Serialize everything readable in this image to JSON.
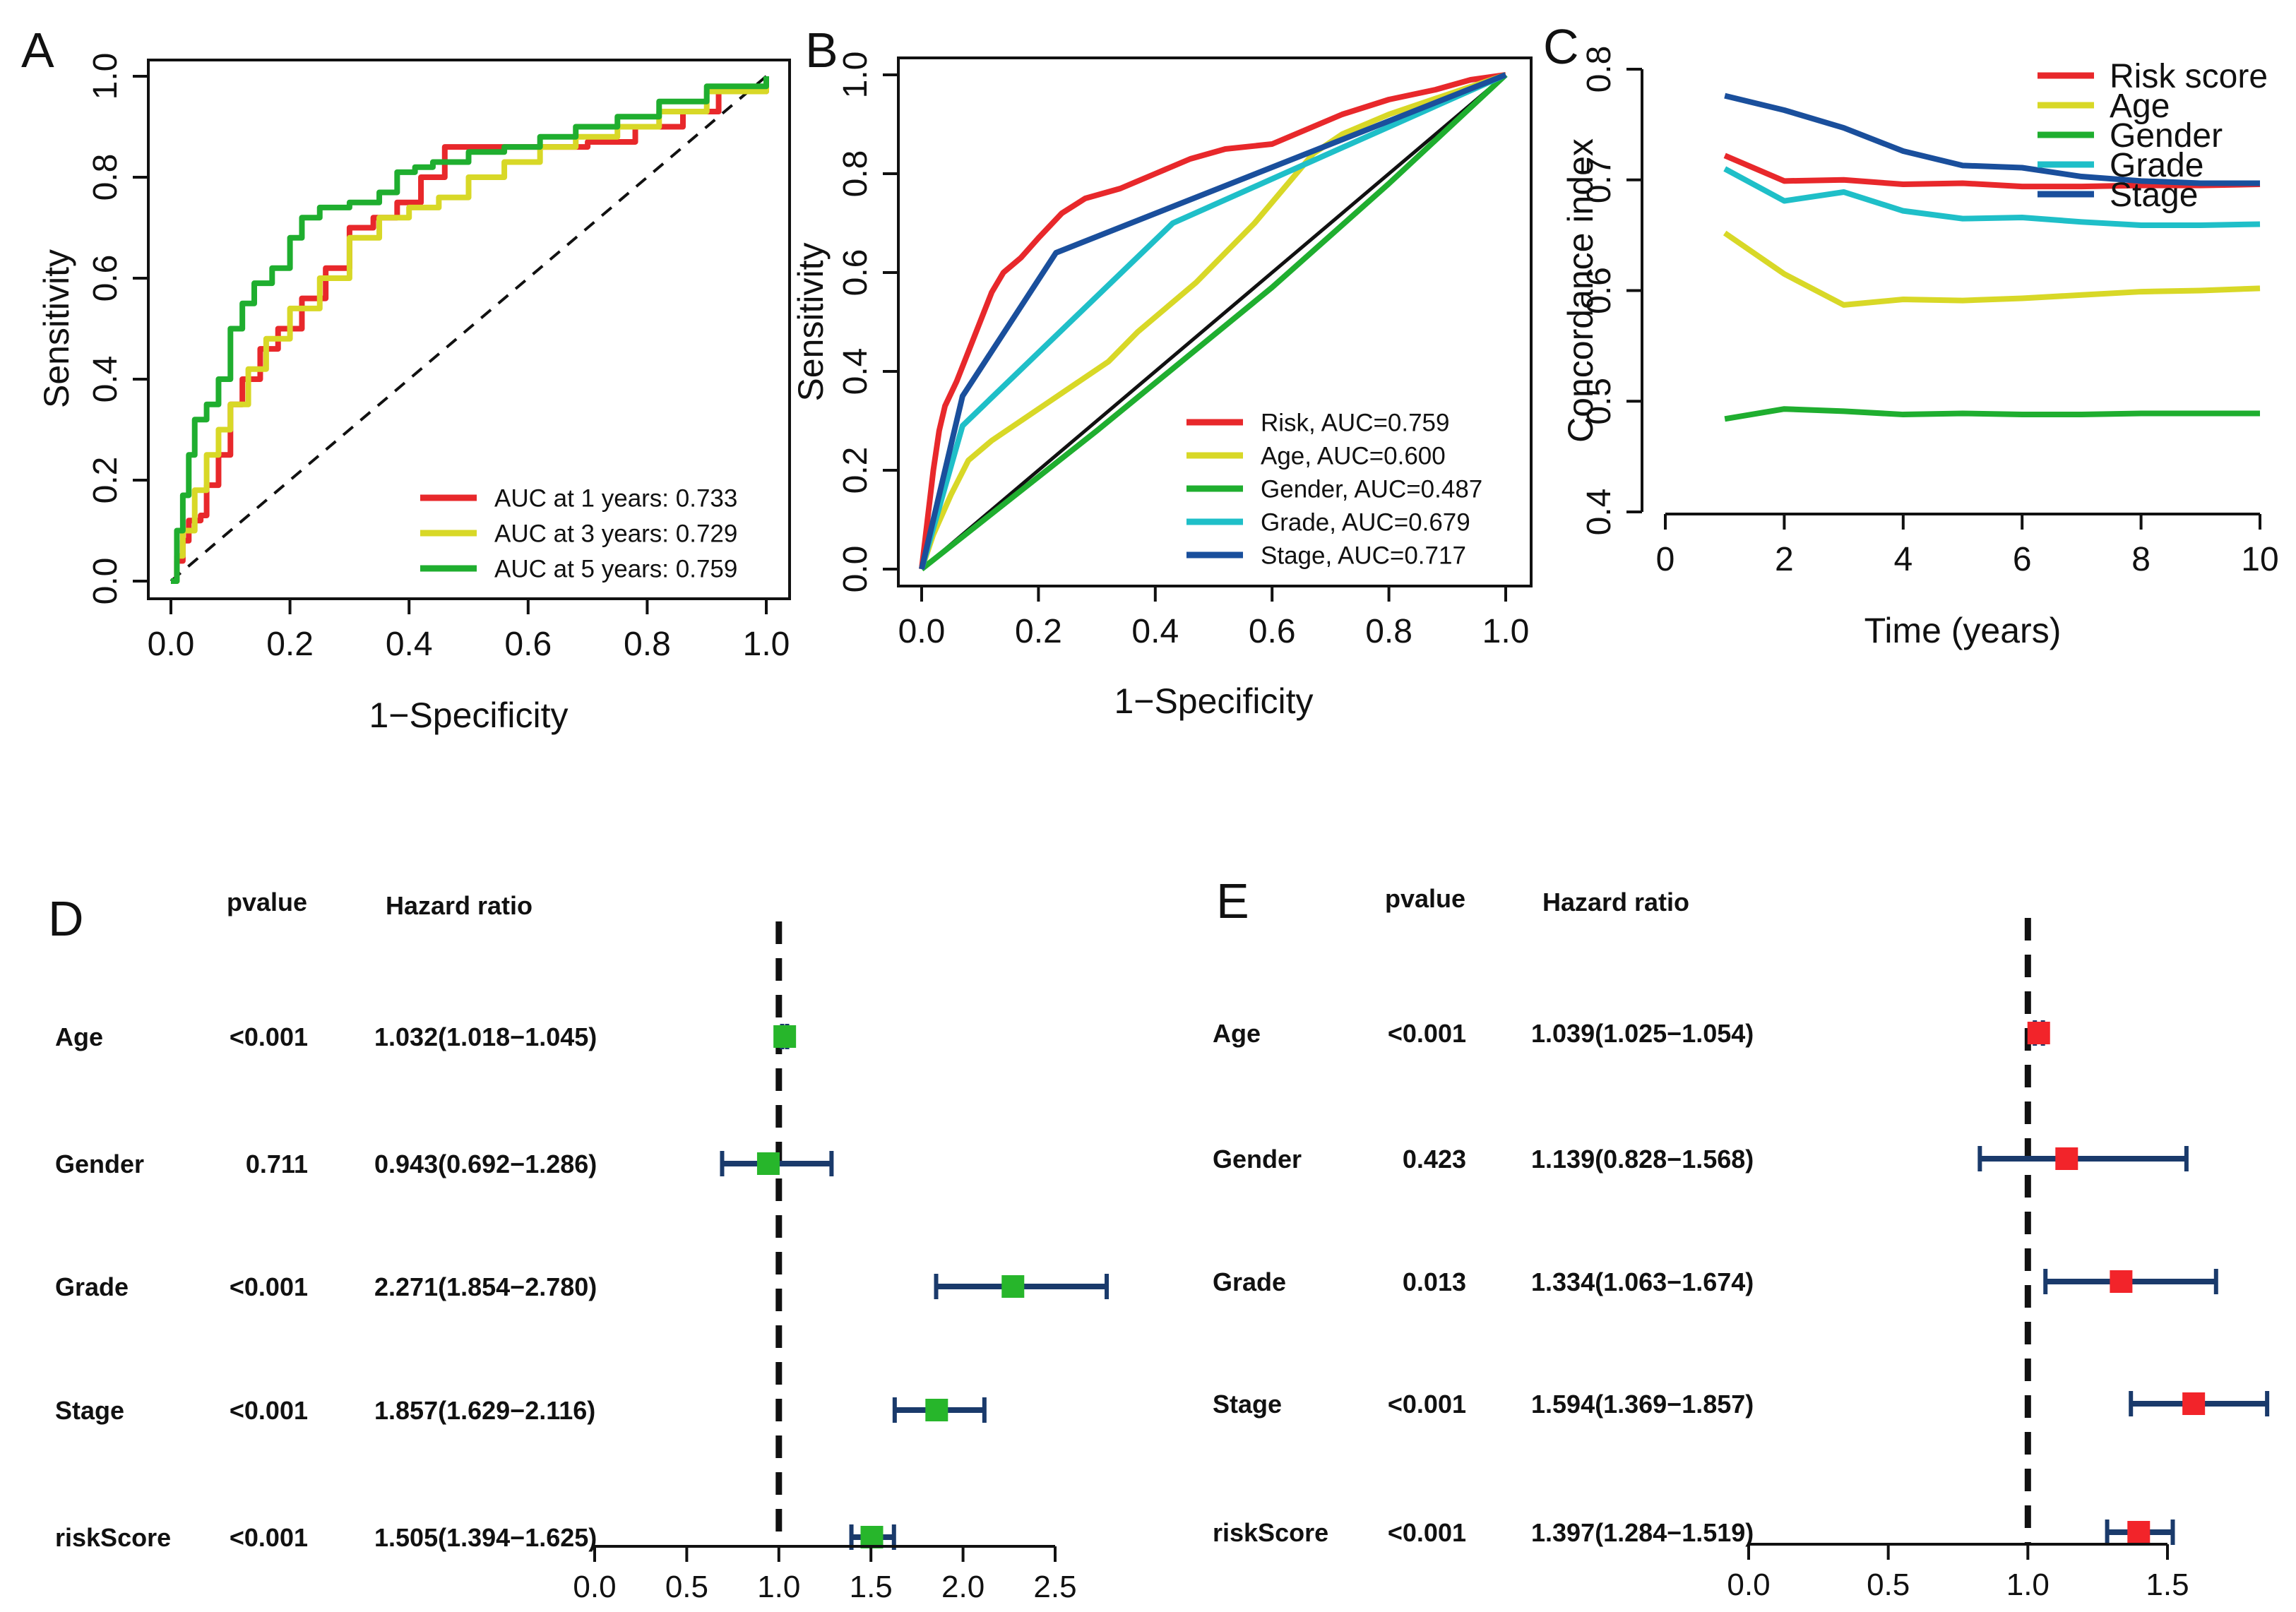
{
  "chart_data": [
    {
      "panel": "A",
      "type": "line",
      "title": "",
      "xlabel": "1−Specificity",
      "ylabel": "Sensitivity",
      "xlim": [
        0,
        1
      ],
      "ylim": [
        0,
        1
      ],
      "xticks": [
        "0.0",
        "0.2",
        "0.4",
        "0.6",
        "0.8",
        "1.0"
      ],
      "yticks": [
        "0.0",
        "0.2",
        "0.4",
        "0.6",
        "0.8",
        "1.0"
      ],
      "legend_position": "bottom-right",
      "series": [
        {
          "name": "AUC at 1 years: 0.733",
          "color": "#e8282b",
          "x": [
            0,
            0.01,
            0.02,
            0.03,
            0.05,
            0.06,
            0.08,
            0.1,
            0.12,
            0.15,
            0.18,
            0.22,
            0.26,
            0.3,
            0.34,
            0.38,
            0.42,
            0.46,
            0.5,
            0.56,
            0.62,
            0.7,
            0.78,
            0.86,
            0.92,
            1.0
          ],
          "y": [
            0,
            0.04,
            0.08,
            0.12,
            0.13,
            0.19,
            0.25,
            0.35,
            0.4,
            0.46,
            0.5,
            0.56,
            0.62,
            0.7,
            0.72,
            0.75,
            0.8,
            0.86,
            0.86,
            0.86,
            0.86,
            0.87,
            0.9,
            0.93,
            0.97,
            1.0
          ]
        },
        {
          "name": "AUC at 3 years: 0.729",
          "color": "#d8d827",
          "x": [
            0,
            0.01,
            0.02,
            0.04,
            0.06,
            0.08,
            0.1,
            0.13,
            0.16,
            0.2,
            0.25,
            0.3,
            0.35,
            0.4,
            0.45,
            0.5,
            0.56,
            0.62,
            0.68,
            0.75,
            0.82,
            0.9,
            1.0
          ],
          "y": [
            0,
            0.05,
            0.1,
            0.18,
            0.25,
            0.3,
            0.35,
            0.42,
            0.48,
            0.54,
            0.6,
            0.68,
            0.72,
            0.74,
            0.76,
            0.8,
            0.83,
            0.86,
            0.88,
            0.9,
            0.93,
            0.97,
            1.0
          ]
        },
        {
          "name": "AUC at 5 years: 0.759",
          "color": "#1fae2f",
          "x": [
            0,
            0.01,
            0.02,
            0.03,
            0.04,
            0.06,
            0.08,
            0.1,
            0.12,
            0.14,
            0.17,
            0.2,
            0.22,
            0.25,
            0.3,
            0.35,
            0.38,
            0.41,
            0.44,
            0.5,
            0.56,
            0.62,
            0.68,
            0.75,
            0.82,
            0.9,
            1.0
          ],
          "y": [
            0,
            0.1,
            0.17,
            0.25,
            0.32,
            0.35,
            0.4,
            0.5,
            0.55,
            0.59,
            0.62,
            0.68,
            0.72,
            0.74,
            0.75,
            0.77,
            0.81,
            0.82,
            0.83,
            0.85,
            0.86,
            0.88,
            0.9,
            0.92,
            0.95,
            0.98,
            1.0
          ]
        }
      ]
    },
    {
      "panel": "B",
      "type": "line",
      "title": "",
      "xlabel": "1−Specificity",
      "ylabel": "Sensitivity",
      "xlim": [
        0,
        1
      ],
      "ylim": [
        0,
        1
      ],
      "xticks": [
        "0.0",
        "0.2",
        "0.4",
        "0.6",
        "0.8",
        "1.0"
      ],
      "yticks": [
        "0.0",
        "0.2",
        "0.4",
        "0.6",
        "0.8",
        "1.0"
      ],
      "legend_position": "bottom-right",
      "series": [
        {
          "name": "Risk, AUC=0.759",
          "color": "#e8282b",
          "x": [
            0,
            0.01,
            0.02,
            0.03,
            0.04,
            0.06,
            0.08,
            0.1,
            0.12,
            0.14,
            0.17,
            0.2,
            0.24,
            0.28,
            0.34,
            0.4,
            0.46,
            0.52,
            0.6,
            0.66,
            0.72,
            0.8,
            0.88,
            0.94,
            1.0
          ],
          "y": [
            0,
            0.1,
            0.2,
            0.28,
            0.33,
            0.38,
            0.44,
            0.5,
            0.56,
            0.6,
            0.63,
            0.67,
            0.72,
            0.75,
            0.77,
            0.8,
            0.83,
            0.85,
            0.86,
            0.89,
            0.92,
            0.95,
            0.97,
            0.99,
            1.0
          ]
        },
        {
          "name": "Age, AUC=0.600",
          "color": "#d8d827",
          "x": [
            0,
            0.02,
            0.05,
            0.08,
            0.12,
            0.17,
            0.22,
            0.27,
            0.32,
            0.37,
            0.42,
            0.47,
            0.52,
            0.57,
            0.62,
            0.67,
            0.72,
            0.8,
            0.9,
            1.0
          ],
          "y": [
            0,
            0.07,
            0.15,
            0.22,
            0.26,
            0.3,
            0.34,
            0.38,
            0.42,
            0.48,
            0.53,
            0.58,
            0.64,
            0.7,
            0.77,
            0.84,
            0.88,
            0.92,
            0.96,
            1.0
          ]
        },
        {
          "name": "Gender, AUC=0.487",
          "color": "#1fae2f",
          "x": [
            0,
            0.3,
            0.6,
            0.8,
            1.0
          ],
          "y": [
            0,
            0.28,
            0.57,
            0.78,
            1.0
          ]
        },
        {
          "name": "Grade, AUC=0.679",
          "color": "#1fbfc8",
          "x": [
            0,
            0.07,
            0.43,
            1.0
          ],
          "y": [
            0,
            0.29,
            0.7,
            1.0
          ]
        },
        {
          "name": "Stage, AUC=0.717",
          "color": "#1a4f9c",
          "x": [
            0,
            0.07,
            0.23,
            1.0
          ],
          "y": [
            0,
            0.35,
            0.64,
            1.0
          ]
        }
      ]
    },
    {
      "panel": "C",
      "type": "line",
      "title": "",
      "xlabel": "Time (years)",
      "ylabel": "Concordance index",
      "xlim": [
        0,
        10
      ],
      "ylim": [
        0.4,
        0.8
      ],
      "xticks": [
        "0",
        "2",
        "4",
        "6",
        "8",
        "10"
      ],
      "yticks": [
        "0.4",
        "0.5",
        "0.6",
        "0.7",
        "0.8"
      ],
      "legend_position": "top-right",
      "series": [
        {
          "name": "Risk score",
          "color": "#e8282b",
          "x": [
            1,
            2,
            3,
            4,
            5,
            6,
            7,
            8,
            9,
            10
          ],
          "y": [
            0.722,
            0.699,
            0.7,
            0.696,
            0.697,
            0.694,
            0.694,
            0.695,
            0.695,
            0.696
          ]
        },
        {
          "name": "Age",
          "color": "#d8d827",
          "x": [
            1,
            2,
            3,
            4,
            5,
            6,
            7,
            8,
            9,
            10
          ],
          "y": [
            0.652,
            0.615,
            0.587,
            0.592,
            0.591,
            0.593,
            0.596,
            0.599,
            0.6,
            0.602
          ]
        },
        {
          "name": "Gender",
          "color": "#1fae2f",
          "x": [
            1,
            2,
            3,
            4,
            5,
            6,
            7,
            8,
            9,
            10
          ],
          "y": [
            0.484,
            0.493,
            0.491,
            0.488,
            0.489,
            0.488,
            0.488,
            0.489,
            0.489,
            0.489
          ]
        },
        {
          "name": "Grade",
          "color": "#1fbfc8",
          "x": [
            1,
            2,
            3,
            4,
            5,
            6,
            7,
            8,
            9,
            10
          ],
          "y": [
            0.71,
            0.681,
            0.689,
            0.672,
            0.665,
            0.666,
            0.662,
            0.659,
            0.659,
            0.66
          ]
        },
        {
          "name": "Stage",
          "color": "#1a4f9c",
          "x": [
            1,
            2,
            3,
            4,
            5,
            6,
            7,
            8,
            9,
            10
          ],
          "y": [
            0.776,
            0.763,
            0.747,
            0.726,
            0.713,
            0.711,
            0.703,
            0.699,
            0.697,
            0.697
          ]
        }
      ]
    },
    {
      "panel": "D",
      "type": "forest",
      "col_headers": [
        "pvalue",
        "Hazard ratio"
      ],
      "marker_color": "#27b62b",
      "ci_color": "#1a3a6b",
      "xlim": [
        0,
        2.5
      ],
      "xticks": [
        "0.0",
        "0.5",
        "1.0",
        "1.5",
        "2.0",
        "2.5"
      ],
      "reference_line": 1.0,
      "rows": [
        {
          "label": "Age",
          "pvalue": "<0.001",
          "hr_text": "1.032(1.018−1.045)",
          "hr": 1.032,
          "lo": 1.018,
          "hi": 1.045
        },
        {
          "label": "Gender",
          "pvalue": "0.711",
          "hr_text": "0.943(0.692−1.286)",
          "hr": 0.943,
          "lo": 0.692,
          "hi": 1.286
        },
        {
          "label": "Grade",
          "pvalue": "<0.001",
          "hr_text": "2.271(1.854−2.780)",
          "hr": 2.271,
          "lo": 1.854,
          "hi": 2.78
        },
        {
          "label": "Stage",
          "pvalue": "<0.001",
          "hr_text": "1.857(1.629−2.116)",
          "hr": 1.857,
          "lo": 1.629,
          "hi": 2.116
        },
        {
          "label": "riskScore",
          "pvalue": "<0.001",
          "hr_text": "1.505(1.394−1.625)",
          "hr": 1.505,
          "lo": 1.394,
          "hi": 1.625
        }
      ]
    },
    {
      "panel": "E",
      "type": "forest",
      "col_headers": [
        "pvalue",
        "Hazard ratio"
      ],
      "marker_color": "#f2242a",
      "ci_color": "#1a3a6b",
      "xlim": [
        0,
        1.5
      ],
      "xticks": [
        "0.0",
        "0.5",
        "1.0",
        "1.5"
      ],
      "reference_line": 1.0,
      "rows": [
        {
          "label": "Age",
          "pvalue": "<0.001",
          "hr_text": "1.039(1.025−1.054)",
          "hr": 1.039,
          "lo": 1.025,
          "hi": 1.054
        },
        {
          "label": "Gender",
          "pvalue": "0.423",
          "hr_text": "1.139(0.828−1.568)",
          "hr": 1.139,
          "lo": 0.828,
          "hi": 1.568
        },
        {
          "label": "Grade",
          "pvalue": "0.013",
          "hr_text": "1.334(1.063−1.674)",
          "hr": 1.334,
          "lo": 1.063,
          "hi": 1.674
        },
        {
          "label": "Stage",
          "pvalue": "<0.001",
          "hr_text": "1.594(1.369−1.857)",
          "hr": 1.594,
          "lo": 1.369,
          "hi": 1.857
        },
        {
          "label": "riskScore",
          "pvalue": "<0.001",
          "hr_text": "1.397(1.284−1.519)",
          "hr": 1.397,
          "lo": 1.284,
          "hi": 1.519
        }
      ]
    }
  ]
}
